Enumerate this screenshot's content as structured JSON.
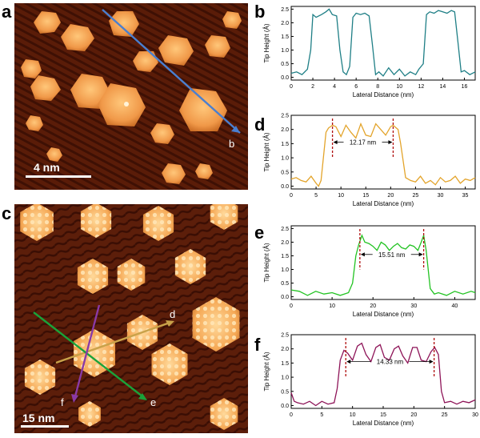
{
  "panels": {
    "a": {
      "letter": "a",
      "scale_label": "4 nm",
      "line_end_label": "b",
      "line_color": "#4a7fd0"
    },
    "c": {
      "letter": "c",
      "scale_label": "15 nm",
      "lines": [
        {
          "label": "d",
          "color": "#c9a24a"
        },
        {
          "label": "e",
          "color": "#1aa33a"
        },
        {
          "label": "f",
          "color": "#8a3aa6"
        }
      ]
    }
  },
  "chart_data": [
    {
      "panel": "b",
      "type": "line",
      "color": "#1f7f86",
      "xlabel": "Lateral Distance (nm)",
      "ylabel": "Tip Height (Å)",
      "xlim": [
        0,
        17
      ],
      "ylim": [
        -0.1,
        2.6
      ],
      "xticks": [
        0,
        2,
        4,
        6,
        8,
        10,
        12,
        14,
        16
      ],
      "yticks": [
        0.0,
        0.5,
        1.0,
        1.5,
        2.0,
        2.5
      ],
      "x": [
        0,
        0.5,
        1,
        1.5,
        1.8,
        2.0,
        2.3,
        2.8,
        3.2,
        3.5,
        3.8,
        4.2,
        4.5,
        4.8,
        5.1,
        5.4,
        5.7,
        6.0,
        6.4,
        6.8,
        7.2,
        7.5,
        7.8,
        8.1,
        8.5,
        9.0,
        9.5,
        10.0,
        10.5,
        11.0,
        11.5,
        11.8,
        12.2,
        12.5,
        12.8,
        13.2,
        13.6,
        14.0,
        14.4,
        14.8,
        15.1,
        15.4,
        15.7,
        16.0,
        16.5,
        17.0
      ],
      "y": [
        0.15,
        0.2,
        0.1,
        0.3,
        1.0,
        2.3,
        2.2,
        2.3,
        2.4,
        2.5,
        2.3,
        2.25,
        1.0,
        0.2,
        0.1,
        0.4,
        2.2,
        2.35,
        2.3,
        2.35,
        2.25,
        1.2,
        0.1,
        0.2,
        0.05,
        0.35,
        0.1,
        0.3,
        0.05,
        0.2,
        0.1,
        0.3,
        0.5,
        2.3,
        2.4,
        2.35,
        2.45,
        2.4,
        2.35,
        2.45,
        2.4,
        1.3,
        0.2,
        0.25,
        0.1,
        0.2
      ],
      "markers": []
    },
    {
      "panel": "d",
      "type": "line",
      "color": "#e3a42b",
      "xlabel": "Lateral Distance (nm)",
      "ylabel": "Tip Height (Å)",
      "xlim": [
        0,
        37
      ],
      "ylim": [
        -0.1,
        2.5
      ],
      "xticks": [
        0,
        5,
        10,
        15,
        20,
        25,
        30,
        35
      ],
      "yticks": [
        0.0,
        0.5,
        1.0,
        1.5,
        2.0,
        2.5
      ],
      "x": [
        0,
        1,
        2,
        3,
        4,
        5,
        5.5,
        6,
        7,
        7.5,
        8.3,
        9,
        10,
        11,
        12,
        13,
        14,
        15,
        16,
        17,
        18,
        19,
        20,
        20.5,
        21.5,
        22,
        23,
        24,
        25,
        26,
        27,
        28,
        29,
        30,
        31,
        32,
        33,
        34,
        35,
        36,
        37
      ],
      "y": [
        0.25,
        0.3,
        0.2,
        0.15,
        0.35,
        0.1,
        0.0,
        0.2,
        1.9,
        2.05,
        2.15,
        2.1,
        1.75,
        2.15,
        1.9,
        1.7,
        2.2,
        1.8,
        1.75,
        2.2,
        2.0,
        1.8,
        2.1,
        2.15,
        2.0,
        1.5,
        0.3,
        0.2,
        0.15,
        0.35,
        0.1,
        0.2,
        0.05,
        0.3,
        0.15,
        0.2,
        0.35,
        0.1,
        0.25,
        0.2,
        0.3
      ],
      "markers": [
        8.3,
        20.5
      ],
      "annotation": "12.17 nm"
    },
    {
      "panel": "e",
      "type": "line",
      "color": "#22c322",
      "xlabel": "Lateral Distance (nm)",
      "ylabel": "Tip Height (Å)",
      "xlim": [
        0,
        45
      ],
      "ylim": [
        -0.1,
        2.6
      ],
      "xticks": [
        0,
        10,
        20,
        30,
        40
      ],
      "yticks": [
        0.0,
        0.5,
        1.0,
        1.5,
        2.0,
        2.5
      ],
      "x": [
        0,
        2,
        4,
        6,
        8,
        10,
        12,
        14,
        15,
        15.8,
        16.5,
        17.3,
        18,
        19,
        20,
        21,
        22,
        23,
        24,
        25,
        26,
        27,
        28,
        29,
        30,
        31,
        31.8,
        32.4,
        33,
        34,
        35,
        36,
        38,
        40,
        42,
        44,
        45
      ],
      "y": [
        0.25,
        0.2,
        0.05,
        0.2,
        0.1,
        0.15,
        0.05,
        0.15,
        0.5,
        1.5,
        1.9,
        2.25,
        2.0,
        1.95,
        1.85,
        1.7,
        2.0,
        1.9,
        1.7,
        1.85,
        1.95,
        1.8,
        1.75,
        1.9,
        1.85,
        1.7,
        2.0,
        2.25,
        1.7,
        0.3,
        0.1,
        0.15,
        0.05,
        0.2,
        0.1,
        0.2,
        0.15
      ],
      "markers": [
        16.8,
        32.4
      ],
      "annotation": "15.51 nm"
    },
    {
      "panel": "f",
      "type": "line",
      "color": "#8e1458",
      "xlabel": "Lateral Distance (nm)",
      "ylabel": "Tip Height (Å)",
      "xlim": [
        0,
        30
      ],
      "ylim": [
        -0.1,
        2.5
      ],
      "xticks": [
        0,
        5,
        10,
        15,
        20,
        25,
        30
      ],
      "yticks": [
        0.0,
        0.5,
        1.0,
        1.5,
        2.0,
        2.5
      ],
      "x": [
        0,
        0.5,
        1,
        2,
        3,
        4,
        5,
        6,
        7,
        7.5,
        8,
        8.6,
        9.2,
        10,
        10.8,
        11.5,
        12.2,
        13,
        13.8,
        14.5,
        15.2,
        16,
        16.8,
        17.5,
        18.2,
        19,
        19.8,
        20.5,
        21.2,
        22,
        22.8,
        23.4,
        24,
        24.5,
        25,
        26,
        27,
        28,
        29,
        30
      ],
      "y": [
        0.45,
        0.15,
        0.1,
        0.05,
        0.15,
        0.0,
        0.15,
        0.05,
        0.1,
        0.6,
        1.6,
        1.95,
        1.85,
        1.6,
        2.1,
        2.2,
        1.8,
        1.55,
        2.05,
        2.15,
        1.7,
        1.6,
        2.0,
        2.1,
        1.75,
        1.5,
        2.05,
        2.05,
        1.6,
        1.55,
        1.9,
        2.05,
        1.8,
        0.5,
        0.1,
        0.15,
        0.05,
        0.15,
        0.1,
        0.2
      ],
      "markers": [
        8.9,
        23.3
      ],
      "annotation": "14.33 nm"
    }
  ]
}
